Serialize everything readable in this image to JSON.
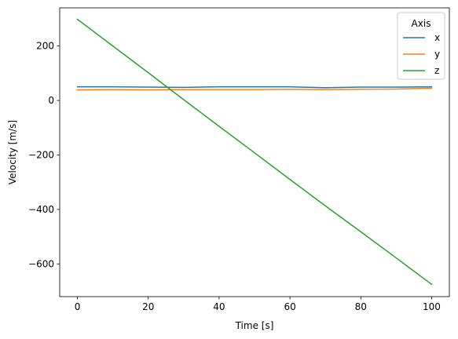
{
  "chart_data": {
    "type": "line",
    "title": "",
    "xlabel": "Time [s]",
    "ylabel": "Velocity [m/s]",
    "xlim": [
      -5,
      105
    ],
    "ylim": [
      -720,
      340
    ],
    "xticks": [
      0,
      20,
      40,
      60,
      80,
      100
    ],
    "yticks": [
      -600,
      -400,
      -200,
      0,
      200
    ],
    "xtick_labels": [
      "0",
      "20",
      "40",
      "60",
      "80",
      "100"
    ],
    "ytick_labels": [
      "−600",
      "−400",
      "−200",
      "0",
      "200"
    ],
    "grid": false,
    "legend": {
      "title": "Axis",
      "placement": "top-right"
    },
    "x": [
      0,
      10,
      20,
      30,
      40,
      50,
      60,
      70,
      80,
      90,
      100
    ],
    "series": [
      {
        "name": "x",
        "color": "#1f77b4",
        "values": [
          50,
          50,
          49,
          48,
          50,
          50,
          50,
          47,
          49,
          49,
          50
        ]
      },
      {
        "name": "y",
        "color": "#ff7f0e",
        "values": [
          39,
          40,
          39,
          40,
          40,
          40,
          41,
          40,
          41,
          42,
          45
        ]
      },
      {
        "name": "z",
        "color": "#2ca02c",
        "values": [
          298,
          200,
          102,
          3,
          -95,
          -192,
          -290,
          -387,
          -482,
          -578,
          -675
        ]
      }
    ]
  }
}
